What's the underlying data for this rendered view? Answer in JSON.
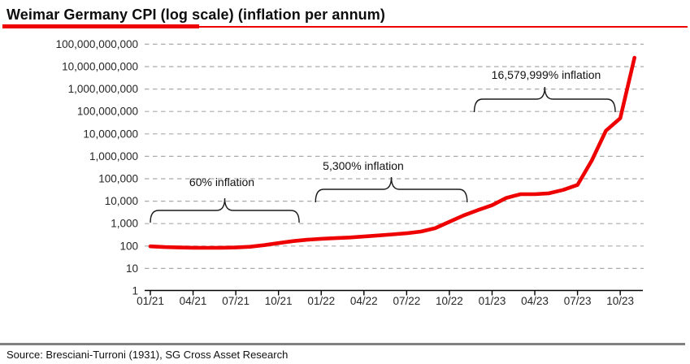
{
  "header": {
    "title": "Weimar Germany CPI (log scale) (inflation per annum)"
  },
  "footer": {
    "source": "Source: Bresciani-Turroni (1931), SG Cross Asset Research"
  },
  "colors": {
    "line": "#ee0000",
    "title_underline": "#ee0000",
    "grid": "#ababab",
    "axis": "#000000",
    "label_text": "#262626",
    "annotation_text": "#111111",
    "brace": "#1a1a1a",
    "footer_rule": "#808080"
  },
  "chart_data": {
    "type": "line",
    "title": "Weimar Germany CPI (log scale) (inflation per annum)",
    "xlabel": "",
    "ylabel": "",
    "y_scale": "log10",
    "ylim": [
      1,
      100000000000
    ],
    "grid": "horizontal-dashed",
    "legend_position": "none",
    "y_tick_labels": [
      "1",
      "10",
      "100",
      "1,000",
      "10,000",
      "100,000",
      "1,000,000",
      "10,000,000",
      "100,000,000",
      "1,000,000,000",
      "10,000,000,000",
      "100,000,000,000"
    ],
    "x_tick_labels": [
      "01/21",
      "04/21",
      "07/21",
      "10/21",
      "01/22",
      "04/22",
      "07/22",
      "10/22",
      "01/23",
      "04/23",
      "07/23",
      "10/23"
    ],
    "x": [
      "01/21",
      "02/21",
      "03/21",
      "04/21",
      "05/21",
      "06/21",
      "07/21",
      "08/21",
      "09/21",
      "10/21",
      "11/21",
      "12/21",
      "01/22",
      "02/22",
      "03/22",
      "04/22",
      "05/22",
      "06/22",
      "07/22",
      "08/22",
      "09/22",
      "10/22",
      "11/22",
      "12/22",
      "01/23",
      "02/23",
      "03/23",
      "04/23",
      "05/23",
      "06/23",
      "07/23",
      "08/23",
      "09/23",
      "10/23",
      "11/23"
    ],
    "series": [
      {
        "name": "Weimar Germany CPI (index, log scale)",
        "color": "#ee0000",
        "values": [
          97,
          90,
          86,
          84,
          83,
          84,
          86,
          93,
          110,
          135,
          165,
          190,
          210,
          225,
          240,
          265,
          295,
          330,
          370,
          440,
          620,
          1200,
          2300,
          4000,
          6600,
          14000,
          20500,
          20500,
          22500,
          32000,
          53000,
          650000,
          14000000,
          50000000,
          25000000000
        ]
      }
    ],
    "annotations": [
      {
        "label": "60% inflation",
        "x_from": "01/21",
        "x_to": "11/21"
      },
      {
        "label": "5,300% inflation",
        "x_from": "12/21",
        "x_to": "10/22"
      },
      {
        "label": "16,579,999% inflation",
        "x_from": "11/22",
        "x_to": "10/23"
      }
    ]
  }
}
